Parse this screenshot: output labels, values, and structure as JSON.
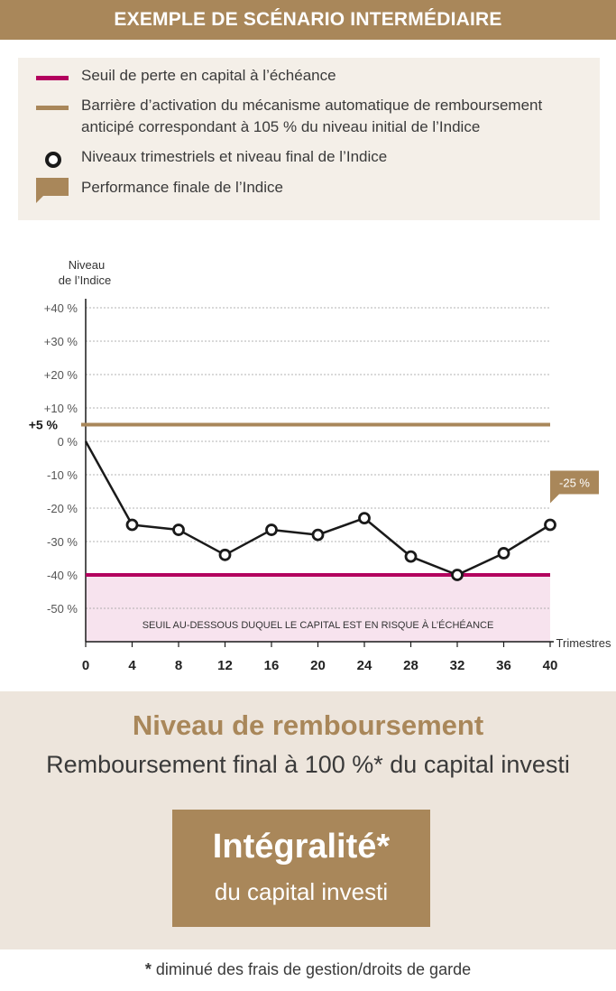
{
  "header": {
    "title": "EXEMPLE DE SCÉNARIO INTERMÉDIAIRE"
  },
  "legend": {
    "items": [
      {
        "symbol": "line",
        "color": "#b3005e",
        "label": "Seuil de perte en capital à l’échéance"
      },
      {
        "symbol": "line",
        "color": "#a9875a",
        "label": "Barrière d’activation du mécanisme automatique de remboursement anticipé correspondant à 105 % du niveau initial de l’Indice"
      },
      {
        "symbol": "circle",
        "color": "#1a1a1a",
        "label": "Niveaux trimestriels et niveau final de l’Indice"
      },
      {
        "symbol": "callout",
        "color": "#a9875a",
        "label": "Performance finale de l’Indice"
      }
    ]
  },
  "chart_data": {
    "type": "line",
    "ylabel_line1": "Niveau",
    "ylabel_line2": "de l’Indice",
    "xlabel": "Trimestres",
    "ylim": [
      -60,
      40
    ],
    "y_ticks": [
      40,
      30,
      20,
      10,
      0,
      -10,
      -20,
      -30,
      -40,
      -50
    ],
    "y_tick_labels": [
      "+40 %",
      "+30 %",
      "+20 %",
      "+10 %",
      "0 %",
      "-10 %",
      "-20 %",
      "-30 %",
      "-40 %",
      "-50 %"
    ],
    "x_ticks": [
      0,
      4,
      8,
      12,
      16,
      20,
      24,
      28,
      32,
      36,
      40
    ],
    "x_tick_labels": [
      "0",
      "4",
      "8",
      "12",
      "16",
      "20",
      "24",
      "28",
      "32",
      "36",
      "40"
    ],
    "series": [
      {
        "x": [
          0,
          4,
          8,
          12,
          16,
          20,
          24,
          28,
          32,
          36,
          40
        ],
        "y": [
          0,
          -25,
          -26.5,
          -34,
          -26.5,
          -28,
          -23,
          -34.5,
          -40,
          -33.5,
          -25
        ],
        "color": "#1a1a1a"
      }
    ],
    "barrier": {
      "value": 5,
      "label": "+5 %",
      "color": "#a9875a"
    },
    "threshold": {
      "value": -40,
      "color": "#b3005e"
    },
    "risk_zone": {
      "from": -60,
      "to": -40,
      "color": "#f7e3ee",
      "label": "SEUIL AU-DESSOUS DUQUEL LE CAPITAL EST EN RISQUE À L’ÉCHÉANCE"
    },
    "final_performance": {
      "label": "-25 %",
      "color": "#a9875a"
    },
    "grid": true
  },
  "result": {
    "title": "Niveau de remboursement",
    "subtitle": "Remboursement final à 100 %* du capital investi",
    "box_main": "Intégralité*",
    "box_sub": "du capital investi"
  },
  "footnote": {
    "star": "*",
    "text": " diminué des frais de gestion/droits de garde"
  }
}
